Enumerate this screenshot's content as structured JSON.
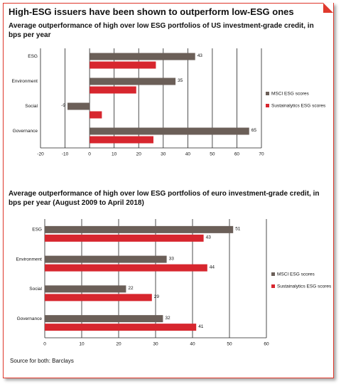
{
  "title": "High-ESG issuers have been shown to outperform low-ESG ones",
  "source": "Source for both: Barclays",
  "chart_data": [
    {
      "type": "bar",
      "orientation": "horizontal",
      "title": "Average outperformance of high over low ESG portfolios of US investment-grade credit, in bps per year",
      "categories": [
        "ESG",
        "Environment",
        "Social",
        "Governance"
      ],
      "series": [
        {
          "name": "MSCI ESG scores",
          "color": "#6b5f58",
          "values": [
            43,
            35,
            -9,
            65
          ],
          "show_labels": true
        },
        {
          "name": "Sustainalytics ESG scores",
          "color": "#d7262e",
          "values": [
            27,
            19,
            5,
            26
          ],
          "show_labels": false
        }
      ],
      "xlim": [
        -20,
        70
      ],
      "xticks": [
        -20,
        -10,
        0,
        10,
        20,
        30,
        40,
        50,
        60,
        70
      ],
      "grid": true,
      "legend": "right"
    },
    {
      "type": "bar",
      "orientation": "horizontal",
      "title": "Average outperformance of high over low ESG portfolios of euro investment-grade credit, in bps per year (August 2009 to April 2018)",
      "categories": [
        "ESG",
        "Environment",
        "Social",
        "Governance"
      ],
      "series": [
        {
          "name": "MSCI ESG scores",
          "color": "#6b5f58",
          "values": [
            51,
            33,
            22,
            32
          ],
          "show_labels": true
        },
        {
          "name": "Sustainalytics ESG scores",
          "color": "#d7262e",
          "values": [
            43,
            44,
            29,
            41
          ],
          "show_labels": true
        }
      ],
      "xlim": [
        0,
        60
      ],
      "xticks": [
        0,
        10,
        20,
        30,
        40,
        50,
        60
      ],
      "grid": true,
      "legend": "right"
    }
  ]
}
